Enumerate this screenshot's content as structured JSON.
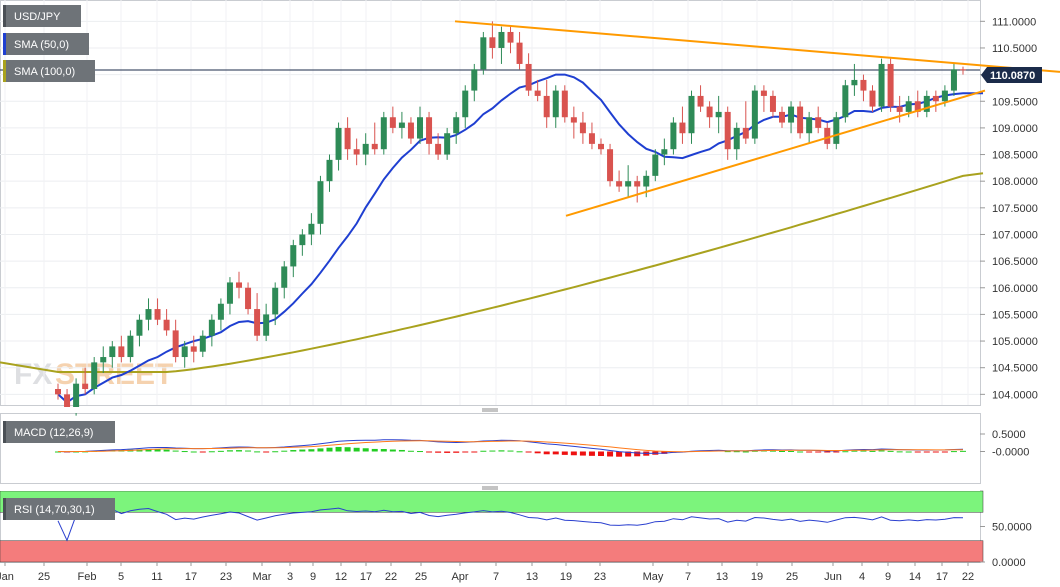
{
  "legend": {
    "symbol": "USD/JPY",
    "sma50": "SMA (50,0)",
    "sma100": "SMA (100,0)",
    "macd": "MACD (12,26,9)",
    "rsi": "RSI (14,70,30,1)"
  },
  "watermark": {
    "part1": "FX",
    "part2": "STREET"
  },
  "colors": {
    "up": "#2e8b57",
    "down": "#d9534f",
    "sma50": "#1f3fd1",
    "sma100": "#a9a21e",
    "trendline": "#ff9a00",
    "macd_line": "#2a3fcf",
    "signal_line": "#ff7a1a",
    "hist_up": "#22cc22",
    "hist_down": "#ee1111",
    "rsi_line": "#2a3fcf",
    "rsi_overbought": "#7cf47c",
    "rsi_oversold": "#f47c7c"
  },
  "chart_data": {
    "type": "candlestick",
    "symbol": "USD/JPY",
    "last_price_label": "110.0870",
    "price_axis": {
      "range": [
        103.8,
        111.4
      ],
      "ticks": [
        "111.0000",
        "110.5000",
        "110.0000",
        "109.5000",
        "109.0000",
        "108.5000",
        "108.0000",
        "107.5000",
        "107.0000",
        "106.5000",
        "106.0000",
        "105.5000",
        "105.0000",
        "104.5000",
        "104.0000"
      ]
    },
    "macd_axis": {
      "range": [
        -0.9,
        1.1
      ],
      "ticks": [
        "0.5000",
        "-0.0000"
      ]
    },
    "rsi_axis": {
      "range": [
        0,
        100
      ],
      "ticks": [
        "50.0000",
        "0.0000"
      ],
      "overbought": 70,
      "oversold": 30
    },
    "x_labels": [
      "Jan",
      "25",
      "Feb",
      "5",
      "11",
      "17",
      "23",
      "Mar",
      "3",
      "9",
      "12",
      "17",
      "22",
      "25",
      "Apr",
      "7",
      "13",
      "19",
      "23",
      "May",
      "7",
      "13",
      "19",
      "25",
      "Jun",
      "4",
      "9",
      "14",
      "17",
      "22"
    ],
    "candles": [
      [
        104.1,
        104.2,
        103.9,
        104.0
      ],
      [
        104.0,
        104.1,
        103.7,
        103.7
      ],
      [
        103.7,
        104.3,
        103.6,
        104.2
      ],
      [
        104.2,
        104.5,
        104.0,
        104.1
      ],
      [
        104.1,
        104.7,
        104.0,
        104.6
      ],
      [
        104.6,
        104.9,
        104.4,
        104.7
      ],
      [
        104.7,
        105.0,
        104.5,
        104.9
      ],
      [
        104.9,
        105.1,
        104.6,
        104.7
      ],
      [
        104.7,
        105.2,
        104.6,
        105.1
      ],
      [
        105.1,
        105.5,
        104.9,
        105.4
      ],
      [
        105.4,
        105.8,
        105.2,
        105.6
      ],
      [
        105.6,
        105.8,
        105.3,
        105.4
      ],
      [
        105.4,
        105.6,
        105.1,
        105.2
      ],
      [
        105.2,
        105.4,
        104.6,
        104.7
      ],
      [
        104.7,
        105.0,
        104.5,
        104.9
      ],
      [
        104.9,
        105.1,
        104.6,
        104.8
      ],
      [
        104.8,
        105.2,
        104.7,
        105.1
      ],
      [
        105.1,
        105.5,
        104.9,
        105.4
      ],
      [
        105.4,
        105.8,
        105.2,
        105.7
      ],
      [
        105.7,
        106.2,
        105.5,
        106.1
      ],
      [
        106.1,
        106.3,
        105.8,
        106.0
      ],
      [
        106.0,
        106.1,
        105.5,
        105.6
      ],
      [
        105.6,
        105.9,
        105.0,
        105.1
      ],
      [
        105.1,
        105.7,
        105.0,
        105.5
      ],
      [
        105.5,
        106.1,
        105.3,
        106.0
      ],
      [
        106.0,
        106.5,
        105.8,
        106.4
      ],
      [
        106.4,
        106.9,
        106.2,
        106.8
      ],
      [
        106.8,
        107.1,
        106.6,
        107.0
      ],
      [
        107.0,
        107.4,
        106.8,
        107.2
      ],
      [
        107.2,
        108.1,
        107.0,
        108.0
      ],
      [
        108.0,
        108.5,
        107.8,
        108.4
      ],
      [
        108.4,
        109.1,
        108.2,
        109.0
      ],
      [
        109.0,
        109.2,
        108.4,
        108.6
      ],
      [
        108.6,
        108.8,
        108.3,
        108.5
      ],
      [
        108.5,
        108.9,
        108.3,
        108.7
      ],
      [
        108.7,
        109.1,
        108.5,
        108.6
      ],
      [
        108.6,
        109.3,
        108.5,
        109.2
      ],
      [
        109.2,
        109.4,
        108.9,
        109.0
      ],
      [
        109.0,
        109.3,
        108.8,
        109.1
      ],
      [
        109.1,
        109.2,
        108.7,
        108.8
      ],
      [
        108.8,
        109.4,
        108.7,
        109.2
      ],
      [
        109.2,
        109.3,
        108.5,
        108.7
      ],
      [
        108.7,
        108.9,
        108.4,
        108.5
      ],
      [
        108.5,
        109.0,
        108.4,
        108.9
      ],
      [
        108.9,
        109.3,
        108.7,
        109.2
      ],
      [
        109.2,
        109.8,
        109.0,
        109.7
      ],
      [
        109.7,
        110.2,
        109.5,
        110.1
      ],
      [
        110.1,
        110.8,
        110.0,
        110.7
      ],
      [
        110.7,
        111.0,
        110.3,
        110.5
      ],
      [
        110.5,
        110.9,
        110.2,
        110.8
      ],
      [
        110.8,
        110.9,
        110.4,
        110.6
      ],
      [
        110.6,
        110.8,
        110.1,
        110.2
      ],
      [
        110.2,
        110.4,
        109.6,
        109.7
      ],
      [
        109.7,
        109.9,
        109.5,
        109.6
      ],
      [
        109.6,
        109.9,
        109.0,
        109.2
      ],
      [
        109.2,
        109.8,
        109.0,
        109.7
      ],
      [
        109.7,
        109.8,
        109.1,
        109.2
      ],
      [
        109.2,
        109.4,
        108.8,
        109.1
      ],
      [
        109.1,
        109.3,
        108.7,
        108.9
      ],
      [
        108.9,
        109.1,
        108.6,
        108.7
      ],
      [
        108.7,
        108.8,
        108.5,
        108.6
      ],
      [
        108.6,
        108.7,
        107.9,
        108.0
      ],
      [
        108.0,
        108.2,
        107.8,
        107.9
      ],
      [
        107.9,
        108.3,
        107.7,
        108.0
      ],
      [
        108.0,
        108.1,
        107.6,
        107.9
      ],
      [
        107.9,
        108.2,
        107.7,
        108.1
      ],
      [
        108.1,
        108.6,
        108.0,
        108.5
      ],
      [
        108.5,
        108.8,
        108.3,
        108.6
      ],
      [
        108.6,
        109.2,
        108.5,
        109.1
      ],
      [
        109.1,
        109.4,
        108.7,
        108.9
      ],
      [
        108.9,
        109.7,
        108.7,
        109.6
      ],
      [
        109.6,
        109.8,
        109.3,
        109.4
      ],
      [
        109.4,
        109.5,
        109.0,
        109.2
      ],
      [
        109.2,
        109.6,
        108.9,
        109.3
      ],
      [
        109.3,
        109.4,
        108.4,
        108.6
      ],
      [
        108.6,
        109.1,
        108.4,
        109.0
      ],
      [
        109.0,
        109.5,
        108.7,
        108.8
      ],
      [
        108.8,
        109.8,
        108.7,
        109.7
      ],
      [
        109.7,
        109.8,
        109.3,
        109.6
      ],
      [
        109.6,
        109.7,
        109.2,
        109.3
      ],
      [
        109.3,
        109.4,
        109.0,
        109.1
      ],
      [
        109.1,
        109.5,
        108.9,
        109.4
      ],
      [
        109.4,
        109.5,
        108.8,
        108.9
      ],
      [
        108.9,
        109.3,
        108.7,
        109.2
      ],
      [
        109.2,
        109.4,
        108.9,
        109.0
      ],
      [
        109.0,
        109.1,
        108.6,
        108.7
      ],
      [
        108.7,
        109.3,
        108.6,
        109.2
      ],
      [
        109.2,
        109.9,
        109.1,
        109.8
      ],
      [
        109.8,
        110.2,
        109.6,
        109.9
      ],
      [
        109.9,
        110.0,
        109.5,
        109.7
      ],
      [
        109.7,
        109.8,
        109.3,
        109.4
      ],
      [
        109.4,
        110.3,
        109.3,
        110.2
      ],
      [
        110.2,
        110.3,
        109.3,
        109.4
      ],
      [
        109.4,
        109.6,
        109.1,
        109.3
      ],
      [
        109.3,
        109.6,
        109.2,
        109.5
      ],
      [
        109.5,
        109.7,
        109.2,
        109.3
      ],
      [
        109.3,
        109.7,
        109.2,
        109.6
      ],
      [
        109.6,
        109.7,
        109.3,
        109.5
      ],
      [
        109.5,
        109.8,
        109.4,
        109.7
      ],
      [
        109.7,
        110.2,
        109.6,
        110.1
      ],
      [
        110.1,
        110.15,
        110.0,
        110.087
      ]
    ]
  }
}
